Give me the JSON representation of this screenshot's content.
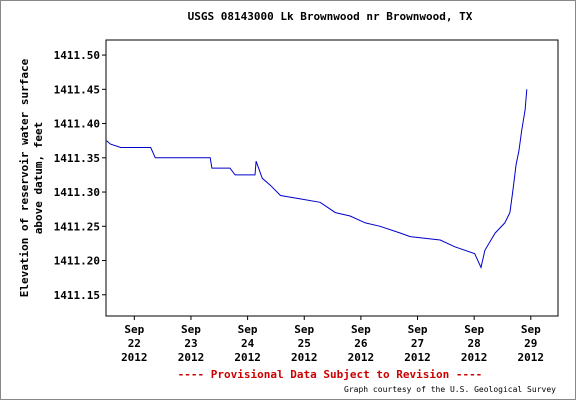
{
  "chart_data": {
    "type": "line",
    "title": "USGS 08143000 Lk Brownwood nr Brownwood, TX",
    "y_label": [
      "Elevation of reservoir water surface",
      "above datum, feet"
    ],
    "footer": "---- Provisional Data Subject to Revision ----",
    "credit": "Graph courtesy of the U.S. Geological Survey",
    "x": [
      21.51,
      21.58,
      21.76,
      22.29,
      22.37,
      23.34,
      23.37,
      23.69,
      23.78,
      24.13,
      24.15,
      24.26,
      24.4,
      24.58,
      24.93,
      25.28,
      25.55,
      25.81,
      26.08,
      26.34,
      26.7,
      26.87,
      27.4,
      27.66,
      28.01,
      28.12,
      28.19,
      28.37,
      28.54,
      28.63,
      28.68,
      28.74,
      28.79,
      28.84,
      28.9,
      28.93
    ],
    "series": [
      {
        "name": "Elevation",
        "color": "#0000cc",
        "values": [
          1411.375,
          1411.37,
          1411.365,
          1411.365,
          1411.35,
          1411.35,
          1411.335,
          1411.335,
          1411.325,
          1411.325,
          1411.345,
          1411.32,
          1411.31,
          1411.295,
          1411.29,
          1411.285,
          1411.27,
          1411.265,
          1411.255,
          1411.25,
          1411.24,
          1411.235,
          1411.23,
          1411.22,
          1411.21,
          1411.19,
          1411.215,
          1411.24,
          1411.255,
          1411.27,
          1411.3,
          1411.34,
          1411.36,
          1411.39,
          1411.42,
          1411.45
        ]
      }
    ],
    "xlim": [
      21.5,
      29.48
    ],
    "xticks": [
      {
        "value": 22,
        "label": "Sep 22 2012"
      },
      {
        "value": 23,
        "label": "Sep 23 2012"
      },
      {
        "value": 24,
        "label": "Sep 24 2012"
      },
      {
        "value": 25,
        "label": "Sep 25 2012"
      },
      {
        "value": 26,
        "label": "Sep 26 2012"
      },
      {
        "value": 27,
        "label": "Sep 27 2012"
      },
      {
        "value": 28,
        "label": "Sep 28 2012"
      },
      {
        "value": 29,
        "label": "Sep 29 2012"
      }
    ],
    "ylim": [
      1411.119,
      1411.522
    ],
    "yticks": [
      {
        "value": 1411.15,
        "label": "1411.15"
      },
      {
        "value": 1411.2,
        "label": "1411.20"
      },
      1411.25,
      {
        "value": 1411.3,
        "label": "1411.30"
      },
      1411.35,
      {
        "value": 1411.4,
        "label": "1411.40"
      },
      1411.45,
      {
        "value": 1411.5,
        "label": "1411.50"
      }
    ]
  }
}
